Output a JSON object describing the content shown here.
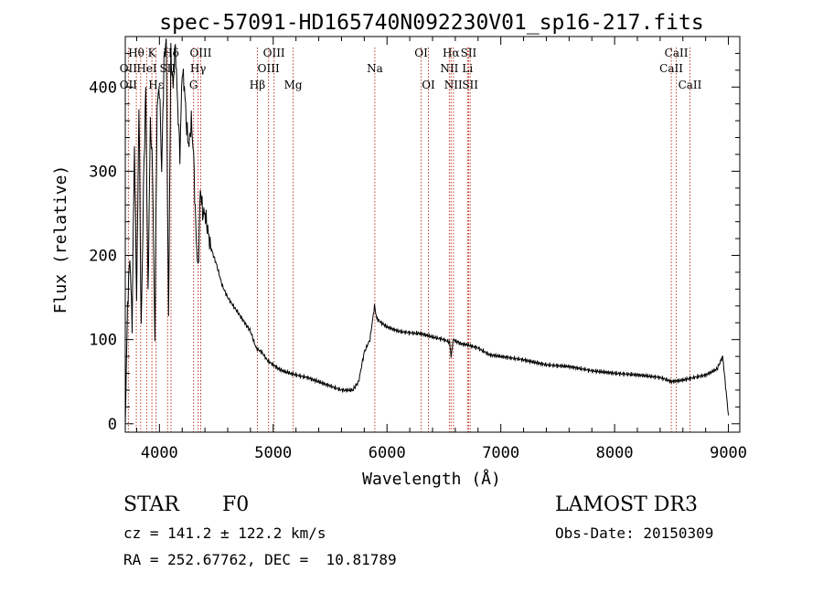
{
  "chart_data": {
    "type": "line",
    "title": "spec-57091-HD165740N092230V01_sp16-217.fits",
    "xlabel": "Wavelength (Å)",
    "ylabel": "Flux (relative)",
    "xlim": [
      3700,
      9100
    ],
    "ylim": [
      -10,
      460
    ],
    "xticks": [
      4000,
      5000,
      6000,
      7000,
      8000,
      9000
    ],
    "yticks": [
      0,
      100,
      200,
      300,
      400
    ],
    "series": [
      {
        "name": "spectrum",
        "x": [
          3700,
          3720,
          3740,
          3760,
          3780,
          3800,
          3820,
          3840,
          3860,
          3880,
          3900,
          3920,
          3940,
          3960,
          3980,
          4000,
          4020,
          4040,
          4060,
          4080,
          4100,
          4120,
          4140,
          4160,
          4180,
          4200,
          4220,
          4240,
          4260,
          4280,
          4300,
          4320,
          4340,
          4360,
          4380,
          4400,
          4450,
          4500,
          4550,
          4600,
          4650,
          4700,
          4750,
          4800,
          4850,
          4900,
          4950,
          5000,
          5050,
          5100,
          5150,
          5200,
          5300,
          5400,
          5500,
          5600,
          5700,
          5750,
          5800,
          5850,
          5870,
          5890,
          5910,
          5950,
          6000,
          6100,
          6200,
          6300,
          6400,
          6500,
          6550,
          6563,
          6580,
          6650,
          6700,
          6800,
          6900,
          7000,
          7200,
          7400,
          7600,
          7800,
          8000,
          8200,
          8400,
          8500,
          8600,
          8700,
          8800,
          8900,
          8950,
          9000
        ],
        "y": [
          0,
          140,
          200,
          120,
          330,
          150,
          380,
          110,
          280,
          400,
          150,
          360,
          300,
          100,
          380,
          400,
          300,
          430,
          460,
          120,
          440,
          400,
          450,
          380,
          320,
          420,
          400,
          350,
          330,
          360,
          320,
          230,
          180,
          280,
          250,
          250,
          210,
          190,
          165,
          150,
          140,
          130,
          120,
          110,
          90,
          85,
          75,
          70,
          65,
          62,
          60,
          58,
          55,
          50,
          45,
          40,
          40,
          50,
          85,
          100,
          120,
          140,
          125,
          120,
          115,
          110,
          108,
          107,
          103,
          100,
          97,
          80,
          100,
          95,
          94,
          90,
          82,
          80,
          76,
          70,
          68,
          63,
          60,
          58,
          55,
          50,
          52,
          55,
          58,
          65,
          80,
          10
        ]
      }
    ],
    "spectral_lines": [
      {
        "label": "Hθ",
        "wavelength": 3797,
        "row": 0
      },
      {
        "label": "K",
        "wavelength": 3934,
        "row": 0
      },
      {
        "label": "Hδ",
        "wavelength": 4102,
        "row": 0
      },
      {
        "label": "OIII",
        "wavelength": 4363,
        "row": 0
      },
      {
        "label": "OIII",
        "wavelength": 5007,
        "row": 0
      },
      {
        "label": "OI",
        "wavelength": 6300,
        "row": 0
      },
      {
        "label": "Hα",
        "wavelength": 6563,
        "row": 0
      },
      {
        "label": "SII",
        "wavelength": 6717,
        "row": 0
      },
      {
        "label": "CaII",
        "wavelength": 8542,
        "row": 0
      },
      {
        "label": "OII",
        "wavelength": 3727,
        "row": 1
      },
      {
        "label": "HeI",
        "wavelength": 3889,
        "row": 1
      },
      {
        "label": "SII",
        "wavelength": 4072,
        "row": 1
      },
      {
        "label": "Hγ",
        "wavelength": 4340,
        "row": 1
      },
      {
        "label": "OIII",
        "wavelength": 4959,
        "row": 1
      },
      {
        "label": "Na",
        "wavelength": 5893,
        "row": 1
      },
      {
        "label": "NII",
        "wavelength": 6548,
        "row": 1
      },
      {
        "label": "Li",
        "wavelength": 6708,
        "row": 1
      },
      {
        "label": "CaII",
        "wavelength": 8498,
        "row": 1
      },
      {
        "label": "OII",
        "wavelength": 3727,
        "row": 2
      },
      {
        "label": "Hε",
        "wavelength": 3970,
        "row": 2
      },
      {
        "label": "G",
        "wavelength": 4300,
        "row": 2
      },
      {
        "label": "Hβ",
        "wavelength": 4861,
        "row": 2
      },
      {
        "label": "Mg",
        "wavelength": 5175,
        "row": 2
      },
      {
        "label": "OI",
        "wavelength": 6364,
        "row": 2
      },
      {
        "label": "NII",
        "wavelength": 6583,
        "row": 2
      },
      {
        "label": "SII",
        "wavelength": 6731,
        "row": 2
      },
      {
        "label": "CaII",
        "wavelength": 8662,
        "row": 2
      }
    ],
    "extra_line_markers": [
      3835,
      3889,
      3934,
      3970,
      4102,
      4300,
      4340,
      4363,
      4861,
      4959,
      5007,
      5175,
      5893,
      6300,
      6364,
      6548,
      6563,
      6583,
      6708,
      6717,
      6731,
      8498,
      8542,
      8662
    ]
  },
  "info": {
    "object_type": "STAR",
    "subclass": "F0",
    "survey": "LAMOST DR3",
    "velocity": "cz = 141.2 ± 122.2 km/s",
    "obs_date": "Obs-Date: 20150309",
    "coordinates": "RA = 252.67762, DEC =  10.81789"
  }
}
